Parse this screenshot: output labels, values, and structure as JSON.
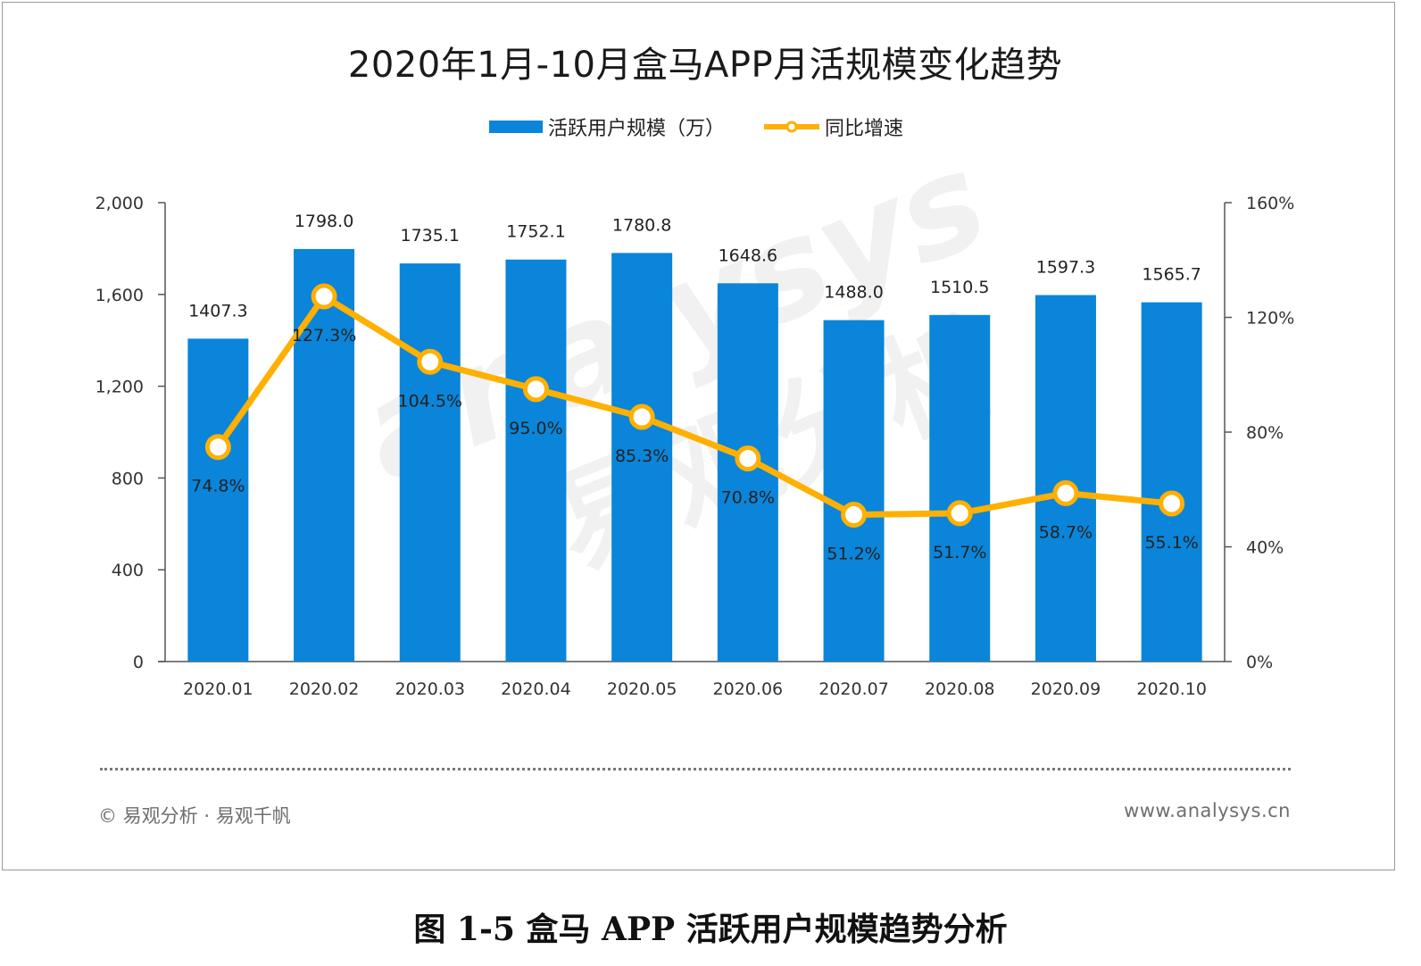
{
  "chart": {
    "title": "2020年1月-10月盒马APP月活规模变化趋势",
    "legend": {
      "bar_label": "活跃用户规模（万）",
      "line_label": "同比增速"
    },
    "colors": {
      "bar": "#0a85d9",
      "line": "#ffb000",
      "axis": "#555555"
    },
    "watermark": {
      "text_en": "analysys",
      "text_cn": "易观分析"
    },
    "footer_left": "© 易观分析 · 易观千帆",
    "footer_right": "www.analysys.cn"
  },
  "caption": "图 1-5 盒马 APP 活跃用户规模趋势分析",
  "chart_data": {
    "type": "bar",
    "title": "2020年1月-10月盒马APP月活规模变化趋势",
    "categories": [
      "2020.01",
      "2020.02",
      "2020.03",
      "2020.04",
      "2020.05",
      "2020.06",
      "2020.07",
      "2020.08",
      "2020.09",
      "2020.10"
    ],
    "series": [
      {
        "name": "活跃用户规模（万）",
        "type": "bar",
        "axis": "left",
        "values": [
          1407.3,
          1798.0,
          1735.1,
          1752.1,
          1780.8,
          1648.6,
          1488.0,
          1510.5,
          1597.3,
          1565.7
        ],
        "labels": [
          "1407.3",
          "1798.0",
          "1735.1",
          "1752.1",
          "1780.8",
          "1648.6",
          "1488.0",
          "1510.5",
          "1597.3",
          "1565.7"
        ]
      },
      {
        "name": "同比增速",
        "type": "line",
        "axis": "right",
        "values": [
          74.8,
          127.3,
          104.5,
          95.0,
          85.3,
          70.8,
          51.2,
          51.7,
          58.7,
          55.1
        ],
        "labels": [
          "74.8%",
          "127.3%",
          "104.5%",
          "95.0%",
          "85.3%",
          "70.8%",
          "51.2%",
          "51.7%",
          "58.7%",
          "55.1%"
        ]
      }
    ],
    "y_left": {
      "range": [
        0,
        2000
      ],
      "ticks": [
        0,
        400,
        800,
        1200,
        1600,
        2000
      ],
      "tick_labels": [
        "0",
        "400",
        "800",
        "1,200",
        "1,600",
        "2,000"
      ]
    },
    "y_right": {
      "range": [
        0,
        160
      ],
      "ticks": [
        0,
        40,
        80,
        120,
        160
      ],
      "tick_labels": [
        "0%",
        "40%",
        "80%",
        "120%",
        "160%"
      ]
    },
    "grid": false,
    "legend_position": "top-center"
  }
}
